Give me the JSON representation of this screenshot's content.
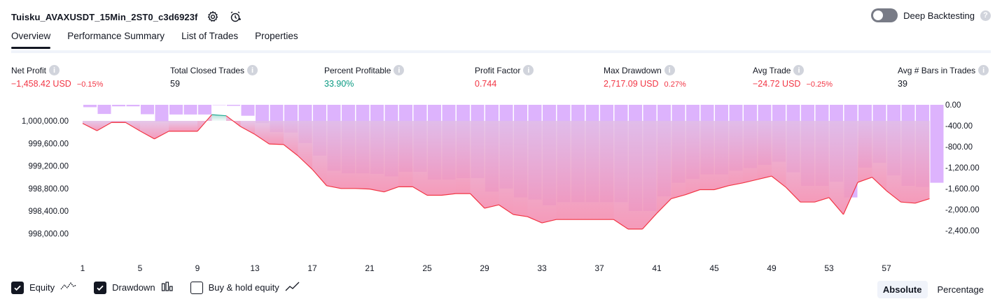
{
  "header": {
    "title": "Tuisku_AVAXUSDT_15Min_2ST0_c3d6923f"
  },
  "deep_backtesting": {
    "label": "Deep Backtesting",
    "help": "?"
  },
  "tabs": [
    {
      "label": "Overview"
    },
    {
      "label": "Performance Summary"
    },
    {
      "label": "List of Trades"
    },
    {
      "label": "Properties"
    }
  ],
  "metrics": [
    {
      "label": "Net Profit",
      "value": "−1,458.42 USD",
      "pct": "−0.15%",
      "tone": "neg"
    },
    {
      "label": "Total Closed Trades",
      "value": "59",
      "pct": "",
      "tone": "neutral"
    },
    {
      "label": "Percent Profitable",
      "value": "33.90%",
      "pct": "",
      "tone": "pos"
    },
    {
      "label": "Profit Factor",
      "value": "0.744",
      "pct": "",
      "tone": "neg"
    },
    {
      "label": "Max Drawdown",
      "value": "2,717.09 USD",
      "pct": "0.27%",
      "tone": "neg"
    },
    {
      "label": "Avg Trade",
      "value": "−24.72 USD",
      "pct": "−0.25%",
      "tone": "neg"
    },
    {
      "label": "Avg # Bars in Trades",
      "value": "39",
      "pct": "",
      "tone": "neutral"
    }
  ],
  "chart_data": {
    "type": "line",
    "left_axis_ticks": [
      "1,000,000.00",
      "999,600.00",
      "999,200.00",
      "998,800.00",
      "998,400.00",
      "998,000.00"
    ],
    "right_axis_ticks": [
      "0.00",
      "-400.00",
      "-800.00",
      "-1,200.00",
      "-1,600.00",
      "-2,000.00",
      "-2,400.00"
    ],
    "x_ticks": [
      "1",
      "5",
      "9",
      "13",
      "17",
      "21",
      "25",
      "29",
      "33",
      "37",
      "41",
      "45",
      "49",
      "53",
      "57"
    ],
    "initial_capital": 1000000,
    "equity": [
      999955,
      999825,
      999970,
      999970,
      999820,
      999680,
      999815,
      999815,
      999815,
      1000110,
      1000090,
      999900,
      999760,
      999590,
      999580,
      999380,
      999140,
      998850,
      998800,
      998800,
      998790,
      998740,
      998830,
      998830,
      998680,
      998680,
      998710,
      998710,
      998450,
      998510,
      998340,
      998300,
      998190,
      998250,
      998250,
      998250,
      998250,
      998250,
      998080,
      998080,
      998360,
      998620,
      998690,
      998780,
      998780,
      998850,
      998900,
      998960,
      999020,
      998820,
      998560,
      998560,
      998640,
      998340,
      998910,
      999000,
      998760,
      998560,
      998540,
      998620
    ],
    "drawdown": [
      -45,
      -175,
      -30,
      -30,
      -180,
      -320,
      -185,
      -185,
      -185,
      0,
      -20,
      -210,
      -350,
      -520,
      -530,
      -730,
      -970,
      -1260,
      -1310,
      -1310,
      -1320,
      -1370,
      -1280,
      -1280,
      -1430,
      -1430,
      -1400,
      -1400,
      -1660,
      -1600,
      -1770,
      -1810,
      -1920,
      -1860,
      -1860,
      -1860,
      -1860,
      -1860,
      -2030,
      -2030,
      -1750,
      -1490,
      -1420,
      -1330,
      -1330,
      -1260,
      -1210,
      -1150,
      -1090,
      -1290,
      -1550,
      -1550,
      -1470,
      -1770,
      -1200,
      -1110,
      -1350,
      -1550,
      -1570,
      -1490
    ],
    "series": [
      {
        "name": "Equity"
      },
      {
        "name": "Drawdown"
      },
      {
        "name": "Buy & hold equity"
      }
    ],
    "colors": {
      "equity_loss": "#f23645",
      "equity_gain": "#22ab94",
      "drawdown_bar": "#ce93fc",
      "fill_gradient_top": "#e1bee7",
      "fill_gradient_bottom": "#f48fb1"
    }
  },
  "legend": [
    {
      "label": "Equity",
      "checked": true,
      "icon": "equity-line-icon"
    },
    {
      "label": "Drawdown",
      "checked": true,
      "icon": "drawdown-bars-icon"
    },
    {
      "label": "Buy & hold equity",
      "checked": false,
      "icon": "buy-hold-line-icon"
    }
  ],
  "modes": [
    {
      "label": "Absolute",
      "active": true
    },
    {
      "label": "Percentage",
      "active": false
    }
  ]
}
